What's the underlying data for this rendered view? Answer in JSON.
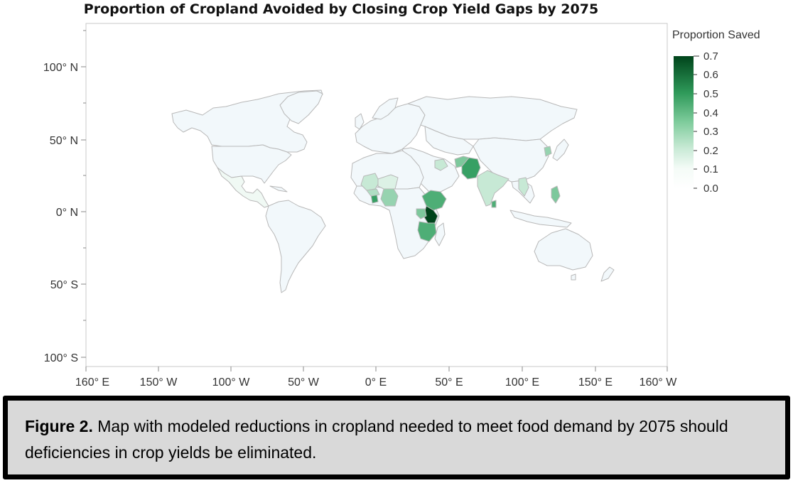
{
  "title": "Proportion of Cropland Avoided by Closing Crop Yield Gaps by 2075",
  "legend": {
    "title": "Proportion Saved",
    "ticks": [
      "0.7",
      "0.6",
      "0.5",
      "0.4",
      "0.3",
      "0.2",
      "0.1",
      "0.0"
    ],
    "range": [
      0.0,
      0.7
    ],
    "colors": [
      "#ffffff",
      "#e6f5ec",
      "#b9e3c9",
      "#7fcc9c",
      "#3fa86a",
      "#1d7a45",
      "#00441b"
    ]
  },
  "y_axis": {
    "ticks": [
      "100° N",
      "50° N",
      "0° N",
      "50° S",
      "100° S"
    ]
  },
  "x_axis": {
    "ticks": [
      "160° E",
      "150° W",
      "100° W",
      "50° W",
      "0° E",
      "50° E",
      "100° E",
      "150° E",
      "160° W"
    ]
  },
  "colors": {
    "land_default": "#f2f8fb",
    "border": "#b8b8b8",
    "frame": "#c8c8c8"
  },
  "regions": [
    {
      "name": "Ethiopia",
      "value": 0.45
    },
    {
      "name": "Kenya",
      "value": 0.7
    },
    {
      "name": "Tanzania",
      "value": 0.45
    },
    {
      "name": "Uganda",
      "value": 0.35
    },
    {
      "name": "Pakistan",
      "value": 0.5
    },
    {
      "name": "Afghanistan",
      "value": 0.35
    },
    {
      "name": "India",
      "value": 0.2
    },
    {
      "name": "Nigeria",
      "value": 0.3
    },
    {
      "name": "Mali",
      "value": 0.2
    },
    {
      "name": "Niger",
      "value": 0.15
    },
    {
      "name": "Ghana",
      "value": 0.5
    },
    {
      "name": "Burkina Faso",
      "value": 0.25
    },
    {
      "name": "Philippines",
      "value": 0.35
    },
    {
      "name": "Sri Lanka",
      "value": 0.45
    },
    {
      "name": "Myanmar",
      "value": 0.2
    },
    {
      "name": "Korea",
      "value": 0.3
    },
    {
      "name": "Iraq",
      "value": 0.2
    },
    {
      "name": "Mexico",
      "value": 0.1
    }
  ],
  "caption": {
    "label": "Figure 2.",
    "text": " Map with modeled reductions in cropland needed to meet food demand by 2075 should deficiencies in crop yields be eliminated."
  }
}
